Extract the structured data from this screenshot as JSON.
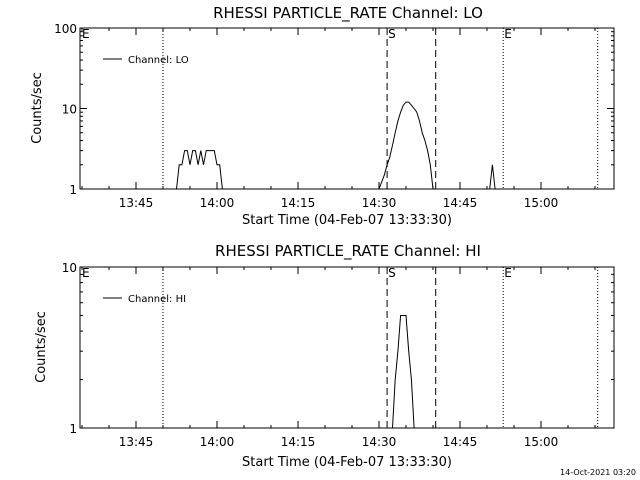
{
  "chart_data": [
    {
      "type": "line",
      "title": "RHESSI PARTICLE_RATE Channel: LO",
      "xlabel": "Start Time (04-Feb-07 13:33:30)",
      "ylabel": "Counts/sec",
      "y_scale": "log",
      "ylim": [
        1,
        100
      ],
      "y_ticks": [
        "1",
        "10",
        "100"
      ],
      "x_ticks": [
        "13:45",
        "14:00",
        "14:15",
        "14:30",
        "14:45",
        "15:00"
      ],
      "legend_position": "top-left",
      "series": [
        {
          "name": "Channel: LO",
          "x": [
            "13:52:30",
            "13:53:00",
            "13:53:30",
            "13:54:00",
            "13:54:30",
            "13:55:00",
            "13:55:30",
            "13:56:00",
            "13:56:30",
            "13:57:00",
            "13:57:30",
            "13:58:00",
            "13:58:30",
            "13:59:00",
            "13:59:30",
            "14:00:00",
            "14:00:30",
            "14:01:00",
            "14:02:30",
            "14:30:00",
            "14:31:00",
            "14:31:30",
            "14:32:00",
            "14:32:30",
            "14:33:00",
            "14:33:30",
            "14:34:00",
            "14:34:30",
            "14:35:00",
            "14:35:30",
            "14:36:00",
            "14:36:30",
            "14:37:00",
            "14:37:30",
            "14:38:00",
            "14:38:30",
            "14:39:00",
            "14:39:30",
            "14:40:00",
            "14:50:30",
            "14:51:00",
            "14:51:30"
          ],
          "y": [
            1,
            2,
            2,
            3,
            3,
            2,
            3,
            3,
            2,
            3,
            2,
            3,
            3,
            3,
            3,
            2,
            2,
            1,
            1,
            1,
            1.5,
            2,
            2.5,
            3.5,
            5,
            7,
            9,
            11,
            12,
            12,
            11,
            10,
            9,
            7,
            5,
            4,
            3,
            2,
            1,
            1,
            2,
            1
          ]
        }
      ],
      "markers": [
        {
          "label": "E",
          "time": "13:33:30",
          "style": "dotted"
        },
        {
          "label": "",
          "time": "13:50:00",
          "style": "dotted"
        },
        {
          "label": "S",
          "time": "14:31:30",
          "style": "dashed"
        },
        {
          "label": "",
          "time": "14:40:30",
          "style": "dashed"
        },
        {
          "label": "E",
          "time": "14:53:00",
          "style": "dotted"
        },
        {
          "label": "",
          "time": "15:10:30",
          "style": "dotted"
        }
      ]
    },
    {
      "type": "line",
      "title": "RHESSI PARTICLE_RATE Channel: HI",
      "xlabel": "Start Time (04-Feb-07 13:33:30)",
      "ylabel": "Counts/sec",
      "y_scale": "log",
      "ylim": [
        1,
        10
      ],
      "y_ticks": [
        "1",
        "10"
      ],
      "x_ticks": [
        "13:45",
        "14:00",
        "14:15",
        "14:30",
        "14:45",
        "15:00"
      ],
      "legend_position": "top-left",
      "series": [
        {
          "name": "Channel: HI",
          "x": [
            "14:32:30",
            "14:33:00",
            "14:33:30",
            "14:34:00",
            "14:34:30",
            "14:35:00",
            "14:35:30",
            "14:36:00",
            "14:36:30"
          ],
          "y": [
            1,
            2,
            3,
            5,
            5,
            5,
            3,
            2,
            1
          ]
        }
      ],
      "markers": [
        {
          "label": "E",
          "time": "13:33:30",
          "style": "dotted"
        },
        {
          "label": "",
          "time": "13:50:00",
          "style": "dotted"
        },
        {
          "label": "S",
          "time": "14:31:30",
          "style": "dashed"
        },
        {
          "label": "",
          "time": "14:40:30",
          "style": "dashed"
        },
        {
          "label": "E",
          "time": "14:53:00",
          "style": "dotted"
        },
        {
          "label": "",
          "time": "15:10:30",
          "style": "dotted"
        }
      ]
    }
  ],
  "footer": {
    "timestamp": "14-Oct-2021 03:20"
  }
}
